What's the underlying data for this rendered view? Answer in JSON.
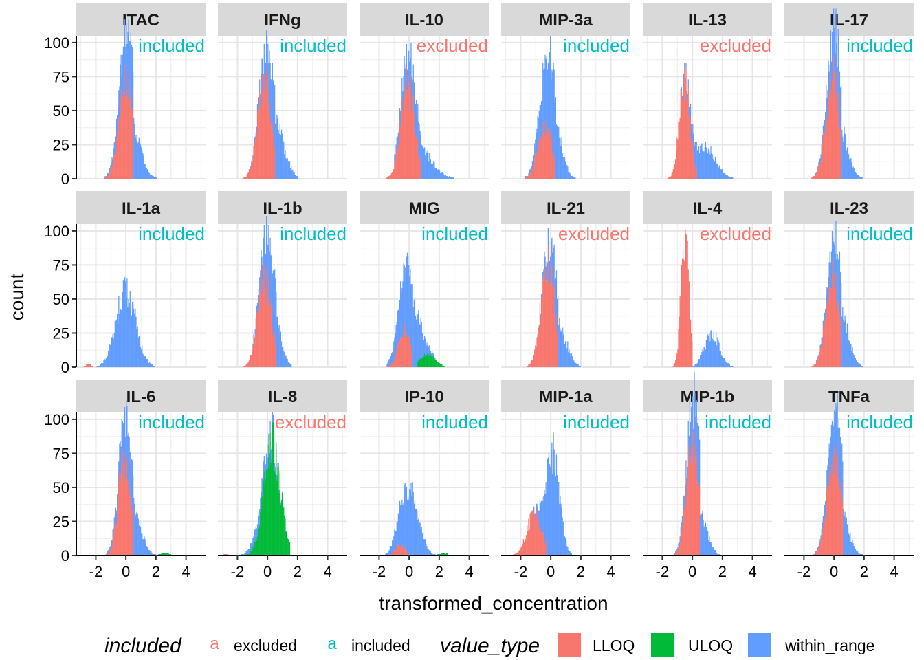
{
  "chart_data": {
    "type": "histogram",
    "facet_layout": "3x6",
    "xlabel": "transformed_concentration",
    "ylabel": "count",
    "xlim": [
      -3.3,
      5.3
    ],
    "ylim": [
      0,
      105
    ],
    "x_ticks": [
      -2,
      0,
      2,
      4
    ],
    "x_tick_labels": [
      "-2",
      "0",
      "2",
      "4"
    ],
    "y_ticks": [
      0,
      25,
      50,
      75,
      100
    ],
    "y_tick_labels": [
      "0",
      "25",
      "50",
      "75",
      "100"
    ],
    "grid": true,
    "value_type_colors": {
      "LLOQ": "#F8766D",
      "ULOQ": "#00BA38",
      "within_range": "#619CFF"
    },
    "included_colors": {
      "excluded": "#F8766D",
      "included": "#00BFC4"
    },
    "panels": [
      {
        "analyte": "ITAC",
        "status": "included",
        "lloq": {
          "center": 0.0,
          "sd": 0.45,
          "peak": 72,
          "low": -2.0,
          "high": 0.5
        },
        "within": {
          "center": 0.3,
          "sd": 0.6,
          "peak": 42,
          "low": -1.8,
          "high": 2.5
        }
      },
      {
        "analyte": "IFNg",
        "status": "included",
        "lloq": {
          "center": -0.2,
          "sd": 0.45,
          "peak": 70,
          "low": -1.8,
          "high": 0.5
        },
        "within": {
          "center": 0.5,
          "sd": 0.6,
          "peak": 40,
          "low": -1.5,
          "high": 2.0
        }
      },
      {
        "analyte": "IL-10",
        "status": "excluded",
        "lloq": {
          "center": -0.1,
          "sd": 0.45,
          "peak": 71,
          "low": -1.9,
          "high": 0.8
        },
        "within": {
          "center": 0.5,
          "sd": 0.9,
          "peak": 24,
          "low": -1.0,
          "high": 5.0
        }
      },
      {
        "analyte": "MIP-3a",
        "status": "included",
        "lloq": {
          "center": -0.4,
          "sd": 0.45,
          "peak": 40,
          "low": -1.7,
          "high": 0.3
        },
        "within": {
          "center": 0.0,
          "sd": 0.55,
          "peak": 62,
          "low": -1.7,
          "high": 2.0
        }
      },
      {
        "analyte": "IL-13",
        "status": "excluded",
        "lloq": {
          "center": -0.5,
          "sd": 0.35,
          "peak": 76,
          "low": -1.8,
          "high": 0.3
        },
        "within": {
          "center": 0.8,
          "sd": 0.7,
          "peak": 24,
          "low": -0.8,
          "high": 2.8
        }
      },
      {
        "analyte": "IL-17",
        "status": "included",
        "lloq": {
          "center": -0.1,
          "sd": 0.45,
          "peak": 76,
          "low": -1.9,
          "high": 0.5
        },
        "within": {
          "center": 0.3,
          "sd": 0.55,
          "peak": 40,
          "low": -1.5,
          "high": 2.0
        }
      },
      {
        "analyte": "IL-1a",
        "status": "included",
        "lloq": {
          "center": -2.5,
          "sd": 0.2,
          "peak": 2,
          "low": -2.9,
          "high": -2.2
        },
        "within": {
          "center": 0.0,
          "sd": 0.65,
          "peak": 56,
          "low": -2.5,
          "high": 2.6
        }
      },
      {
        "analyte": "IL-1b",
        "status": "included",
        "lloq": {
          "center": -0.2,
          "sd": 0.45,
          "peak": 67,
          "low": -1.7,
          "high": 0.6
        },
        "within": {
          "center": 0.3,
          "sd": 0.5,
          "peak": 45,
          "low": -1.0,
          "high": 1.6
        }
      },
      {
        "analyte": "MIG",
        "status": "included",
        "lloq": {
          "center": -0.3,
          "sd": 0.4,
          "peak": 28,
          "low": -1.8,
          "high": 0.2
        },
        "within": {
          "center": 0.0,
          "sd": 0.6,
          "peak": 56,
          "low": -1.5,
          "high": 2.0
        },
        "uloq": {
          "center": 1.2,
          "sd": 0.5,
          "peak": 10,
          "low": 0.5,
          "high": 2.6
        }
      },
      {
        "analyte": "IL-21",
        "status": "excluded",
        "lloq": {
          "center": -0.2,
          "sd": 0.45,
          "peak": 77,
          "low": -2.5,
          "high": 0.5
        },
        "within": {
          "center": 0.5,
          "sd": 0.55,
          "peak": 30,
          "low": -1.0,
          "high": 2.0
        }
      },
      {
        "analyte": "IL-4",
        "status": "excluded",
        "lloq": {
          "center": -0.5,
          "sd": 0.25,
          "peak": 100,
          "low": -1.6,
          "high": 0.0
        },
        "within": {
          "center": 1.3,
          "sd": 0.5,
          "peak": 24,
          "low": 0.0,
          "high": 3.0
        }
      },
      {
        "analyte": "IL-23",
        "status": "included",
        "lloq": {
          "center": -0.1,
          "sd": 0.45,
          "peak": 65,
          "low": -2.4,
          "high": 0.5
        },
        "within": {
          "center": 0.4,
          "sd": 0.55,
          "peak": 40,
          "low": -1.3,
          "high": 2.0
        }
      },
      {
        "analyte": "IL-6",
        "status": "included",
        "lloq": {
          "center": -0.1,
          "sd": 0.4,
          "peak": 70,
          "low": -1.5,
          "high": 0.5
        },
        "within": {
          "center": 0.3,
          "sd": 0.6,
          "peak": 38,
          "low": -1.3,
          "high": 2.0
        },
        "uloq": {
          "center": 2.6,
          "sd": 0.3,
          "peak": 2,
          "low": 2.0,
          "high": 3.0
        }
      },
      {
        "analyte": "IL-8",
        "status": "excluded",
        "uloq": {
          "center": 0.3,
          "sd": 0.55,
          "peak": 81,
          "low": -2.2,
          "high": 1.5
        },
        "within": {
          "center": -0.3,
          "sd": 0.6,
          "peak": 12,
          "low": -2.2,
          "high": 1.3
        },
        "lloq": {
          "center": -2.8,
          "sd": 0.15,
          "peak": 1,
          "low": -3.0,
          "high": -2.6
        }
      },
      {
        "analyte": "IP-10",
        "status": "included",
        "lloq": {
          "center": -0.6,
          "sd": 0.3,
          "peak": 8,
          "low": -1.3,
          "high": 0.0
        },
        "within": {
          "center": 0.0,
          "sd": 0.6,
          "peak": 48,
          "low": -1.6,
          "high": 1.8
        },
        "uloq": {
          "center": 2.3,
          "sd": 0.3,
          "peak": 2,
          "low": 1.8,
          "high": 2.6
        }
      },
      {
        "analyte": "MIP-1a",
        "status": "included",
        "lloq": {
          "center": -1.1,
          "sd": 0.5,
          "peak": 30,
          "low": -2.5,
          "high": -0.3
        },
        "within": {
          "center": 0.1,
          "sd": 0.45,
          "peak": 76,
          "low": -1.3,
          "high": 1.4
        }
      },
      {
        "analyte": "MIP-1b",
        "status": "included",
        "lloq": {
          "center": 0.0,
          "sd": 0.4,
          "peak": 85,
          "low": -2.0,
          "high": 0.5
        },
        "within": {
          "center": 0.3,
          "sd": 0.55,
          "peak": 36,
          "low": -1.2,
          "high": 2.0
        }
      },
      {
        "analyte": "TNFa",
        "status": "included",
        "lloq": {
          "center": 0.0,
          "sd": 0.45,
          "peak": 76,
          "low": -1.8,
          "high": 0.6
        },
        "within": {
          "center": 0.3,
          "sd": 0.55,
          "peak": 40,
          "low": -1.5,
          "high": 2.0
        }
      }
    ],
    "legend": {
      "placement": "bottom",
      "included_title": "included",
      "included_key_glyph": "a",
      "included_items": [
        "excluded",
        "included"
      ],
      "value_type_title": "value_type",
      "value_type_items": [
        "LLOQ",
        "ULOQ",
        "within_range"
      ]
    }
  }
}
